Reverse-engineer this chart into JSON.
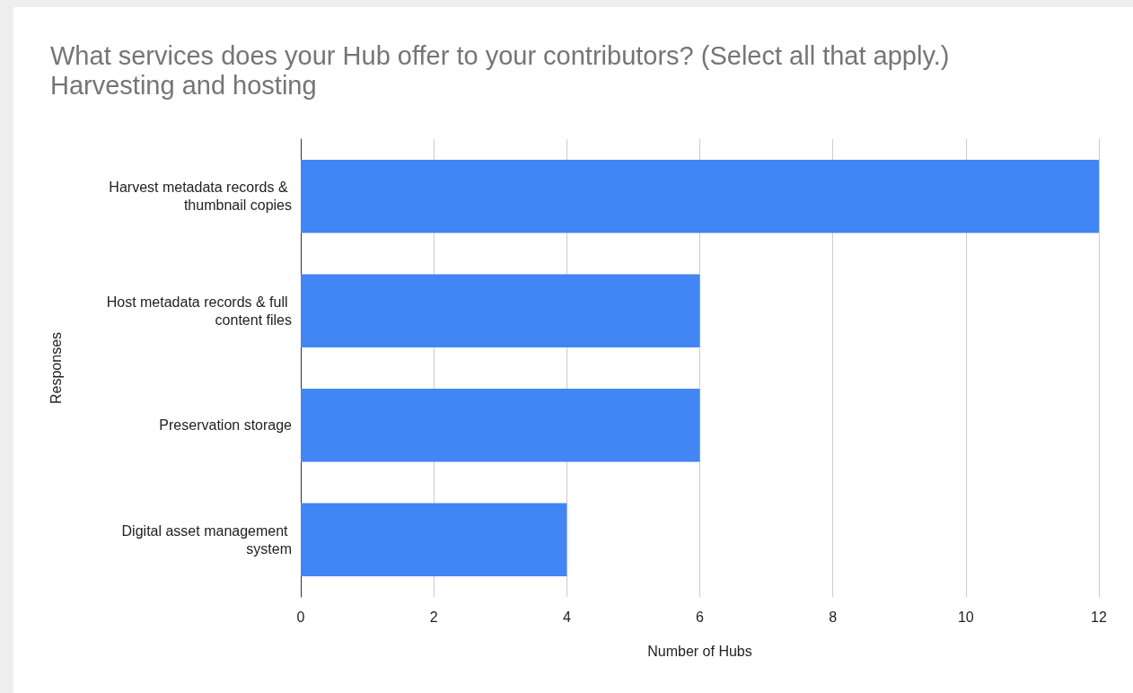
{
  "chart_data": {
    "type": "bar",
    "orientation": "horizontal",
    "title": "What services does your Hub offer to your contributors? (Select all that apply.)",
    "subtitle": "Harvesting and hosting",
    "xlabel": "Number of Hubs",
    "ylabel": "Responses",
    "categories": [
      "Harvest metadata records & thumbnail copies",
      "Host metadata records & full content files",
      "Preservation storage",
      "Digital asset management system"
    ],
    "values": [
      12,
      6,
      6,
      4
    ],
    "color": "#4285f4",
    "xlim": [
      0,
      12
    ],
    "xticks": [
      0,
      2,
      4,
      6,
      8,
      10,
      12
    ],
    "grid": "x"
  }
}
